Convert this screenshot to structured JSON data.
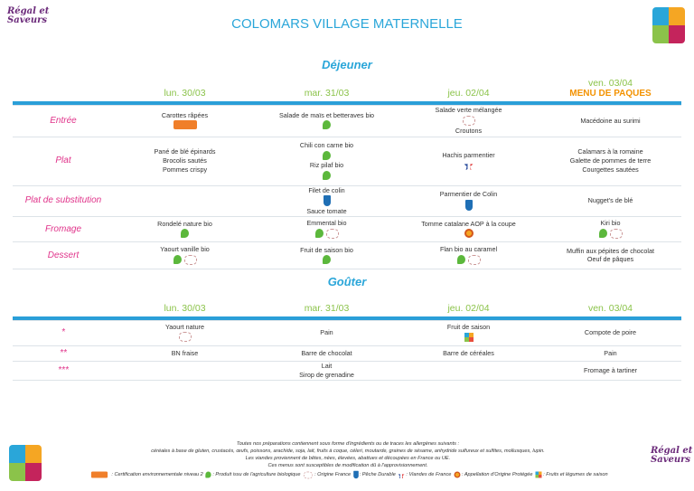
{
  "title": "COLOMARS VILLAGE MATERNELLE",
  "logo_text": "Régal et Saveurs",
  "dejeuner": {
    "title": "Déjeuner",
    "days": [
      "lun. 30/03",
      "mar. 31/03",
      "jeu. 02/04",
      "ven. 03/04"
    ],
    "special": "MENU DE PAQUES",
    "rows": [
      {
        "label": "Entrée",
        "cells": [
          [
            "Carottes râpées",
            {
              "icons": [
                "hve"
              ]
            }
          ],
          [
            "Salade de maïs et betteraves bio",
            {
              "icons": [
                "bio"
              ]
            }
          ],
          [
            "Salade verte mélangée",
            {
              "icons": [
                "origine-france"
              ]
            },
            "Croutons"
          ],
          [
            "Macédoine au surimi"
          ]
        ]
      },
      {
        "label": "Plat",
        "cells": [
          [
            "Pané de blé épinards",
            "Brocolis sautés",
            "Pommes crispy"
          ],
          [
            "Chili con carne bio",
            {
              "icons": [
                "bio"
              ]
            },
            "Riz pilaf bio",
            {
              "icons": [
                "bio"
              ]
            }
          ],
          [
            "Hachis parmentier",
            {
              "icons": [
                "viandes-france"
              ]
            }
          ],
          [
            "Calamars à la romaine",
            "Galette de pommes de terre",
            "Courgettes sautées"
          ]
        ]
      },
      {
        "label": "Plat de substitution",
        "cells": [
          [],
          [
            "Filet de colin",
            {
              "icons": [
                "peche-durable"
              ]
            },
            "Sauce tomate"
          ],
          [
            "Parmentier de Colin",
            {
              "icons": [
                "peche-durable"
              ]
            }
          ],
          [
            "Nugget's de blé"
          ]
        ]
      },
      {
        "label": "Fromage",
        "cells": [
          [
            "Rondelé nature bio",
            {
              "icons": [
                "bio"
              ]
            }
          ],
          [
            "Emmental bio",
            {
              "icons": [
                "bio",
                "origine-france"
              ]
            }
          ],
          [
            "Tomme catalane AOP à la coupe",
            {
              "icons": [
                "aop"
              ]
            }
          ],
          [
            "Kiri bio",
            {
              "icons": [
                "bio",
                "origine-france"
              ]
            }
          ]
        ]
      },
      {
        "label": "Dessert",
        "cells": [
          [
            "Yaourt vanille bio",
            {
              "icons": [
                "bio",
                "origine-france"
              ]
            }
          ],
          [
            "Fruit de saison bio",
            {
              "icons": [
                "bio"
              ]
            }
          ],
          [
            "Flan bio au caramel",
            {
              "icons": [
                "bio",
                "origine-france"
              ]
            }
          ],
          [
            "Muffin aux pépites de chocolat",
            "Oeuf de pâques"
          ]
        ]
      }
    ]
  },
  "gouter": {
    "title": "Goûter",
    "days": [
      "lun. 30/03",
      "mar. 31/03",
      "jeu. 02/04",
      "ven. 03/04"
    ],
    "rows": [
      {
        "label": "*",
        "cells": [
          [
            "Yaourt nature",
            {
              "icons": [
                "origine-france"
              ]
            }
          ],
          [
            "Pain"
          ],
          [
            "Fruit de saison",
            {
              "icons": [
                "saison"
              ]
            }
          ],
          [
            "Compote de poire"
          ]
        ]
      },
      {
        "label": "**",
        "cells": [
          [
            "BN fraise"
          ],
          [
            "Barre de chocolat"
          ],
          [
            "Barre de céréales"
          ],
          [
            "Pain"
          ]
        ]
      },
      {
        "label": "***",
        "cells": [
          [],
          [
            "Lait",
            "Sirop de grenadine"
          ],
          [],
          [
            "Fromage à tartiner"
          ]
        ]
      }
    ]
  },
  "footer": {
    "lines": [
      "Toutes nos préparations contiennent sous forme d'ingrédients ou de traces les allergènes suivants :",
      "céréales à base de gluten, crustacés, œufs, poissons, arachide, soja, lait, fruits à coque, céleri, moutarde, graines de sésame, anhydride sulfureux et sulfites, mollusques, lupin.",
      "Les viandes proviennent de bêtes, nées, élevées, abattues et découpées en France ou UE.",
      "Ces menus sont susceptibles de modification dû à l'approvisionnement."
    ],
    "legend": [
      {
        "icon": "hve",
        "text": ": Certification environnementale niveau 2"
      },
      {
        "icon": "bio",
        "text": ": Produit issu de l'agriculture biologique"
      },
      {
        "icon": "origine-france",
        "text": ": Origine France"
      },
      {
        "icon": "peche-durable",
        "text": ": Pêche Durable"
      },
      {
        "icon": "viandes-france",
        "text": ": Viandes de France"
      },
      {
        "icon": "aop",
        "text": ": Appellation d'Origine Protégée"
      },
      {
        "icon": "saison",
        "text": ": Fruits et légumes de saison"
      }
    ]
  },
  "colors": {
    "accent": "#2aa6d9",
    "day": "#8bc34a",
    "label": "#e0338a",
    "easter": "#f39200"
  }
}
